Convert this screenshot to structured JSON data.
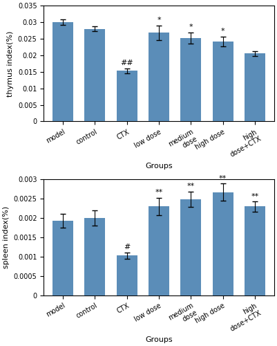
{
  "chart_data": [
    {
      "type": "bar",
      "categories": [
        "model",
        "control",
        "CTX",
        "low dose",
        "medium\ndose",
        "high dose",
        "high\ndose+CTX"
      ],
      "values": [
        0.03,
        0.028,
        0.0153,
        0.0268,
        0.0252,
        0.0242,
        0.0205
      ],
      "errors": [
        0.0008,
        0.0008,
        0.0007,
        0.0022,
        0.0017,
        0.0015,
        0.0007
      ],
      "annotations": [
        null,
        null,
        "##",
        "*",
        "*",
        "*",
        null
      ],
      "ylabel": "thymus index(%)",
      "xlabel": "Groups",
      "ylim": [
        0,
        0.035
      ],
      "yticks": [
        0,
        0.005,
        0.01,
        0.015,
        0.02,
        0.025,
        0.03,
        0.035
      ],
      "color": "#5B8DB8"
    },
    {
      "type": "bar",
      "categories": [
        "model",
        "control",
        "CTX",
        "low dose",
        "medium\ndose",
        "high dose",
        "high\ndose+CTX"
      ],
      "values": [
        0.00193,
        0.002,
        0.00103,
        0.0023,
        0.00249,
        0.00267,
        0.0023
      ],
      "errors": [
        0.00018,
        0.0002,
        8e-05,
        0.00023,
        0.0002,
        0.00022,
        0.00013
      ],
      "annotations": [
        null,
        null,
        "#",
        "**",
        "**",
        "**",
        "**"
      ],
      "ylabel": "spleen index(%)",
      "xlabel": "Groups",
      "ylim": [
        0,
        0.003
      ],
      "yticks": [
        0,
        0.0005,
        0.001,
        0.0015,
        0.002,
        0.0025,
        0.003
      ],
      "color": "#5B8DB8"
    }
  ]
}
